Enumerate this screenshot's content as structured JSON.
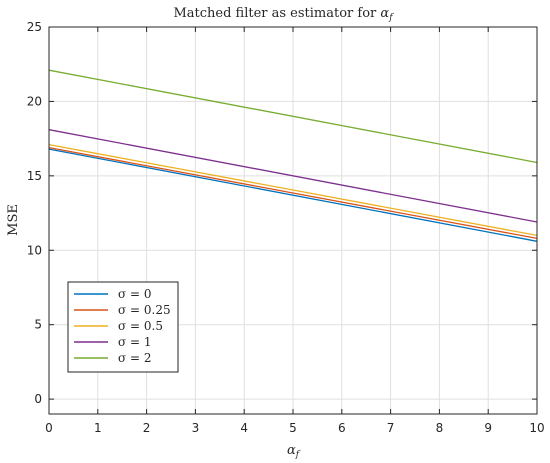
{
  "chart_data": {
    "type": "line",
    "title": "Matched filter as estimator for αf",
    "title_prefix": "Matched filter as estimator for ",
    "title_var": "α",
    "title_sub": "f",
    "xlabel_var": "α",
    "xlabel_sub": "f",
    "ylabel": "MSE",
    "xlim": [
      0,
      10
    ],
    "ylim": [
      -1,
      25
    ],
    "xticks": [
      0,
      1,
      2,
      3,
      4,
      5,
      6,
      7,
      8,
      9,
      10
    ],
    "yticks": [
      0,
      5,
      10,
      15,
      20,
      25
    ],
    "grid": true,
    "legend_position": "bottom-left",
    "x": [
      0,
      10
    ],
    "series": [
      {
        "name": "σ = 0",
        "color": "#0072BD",
        "values": [
          16.8,
          10.6
        ]
      },
      {
        "name": "σ = 0.25",
        "color": "#D95319",
        "values": [
          16.9,
          10.8
        ]
      },
      {
        "name": "σ = 0.5",
        "color": "#EDB120",
        "values": [
          17.1,
          11.0
        ]
      },
      {
        "name": "σ = 1",
        "color": "#7E2F8E",
        "values": [
          18.1,
          11.9
        ]
      },
      {
        "name": "σ = 2",
        "color": "#77AC30",
        "values": [
          22.1,
          15.9
        ]
      }
    ]
  }
}
